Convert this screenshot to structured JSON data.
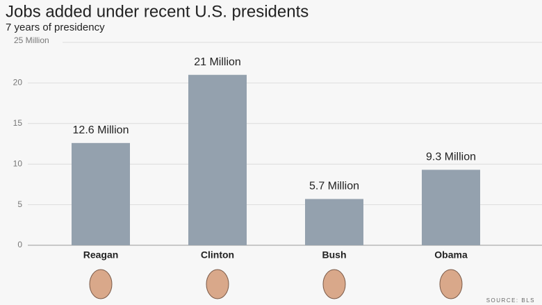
{
  "chart_data": {
    "type": "bar",
    "title": "Jobs added under recent U.S. presidents",
    "subtitle": "7 years of presidency",
    "categories": [
      "Reagan",
      "Clinton",
      "Bush",
      "Obama"
    ],
    "values": [
      12.6,
      21,
      5.7,
      9.3
    ],
    "value_labels": [
      "12.6 Million",
      "21 Million",
      "5.7 Million",
      "9.3 Million"
    ],
    "color": "#94a1ae",
    "ylim": [
      0,
      25
    ],
    "yticks": [
      0,
      5,
      10,
      15,
      20,
      {
        "value": 25,
        "label": "25 Million"
      }
    ],
    "grid": true,
    "source": "SOURCE: BLS"
  }
}
